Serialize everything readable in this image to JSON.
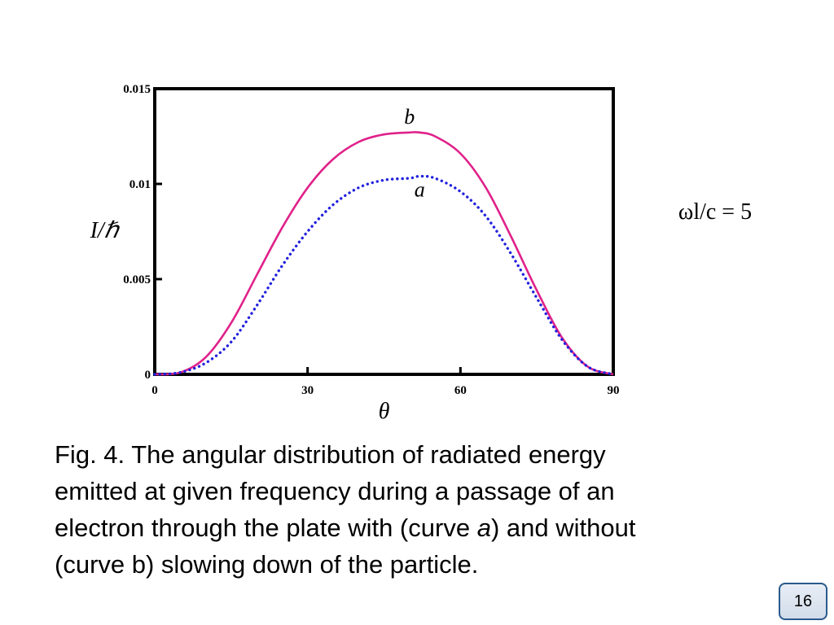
{
  "chart_data": {
    "type": "line",
    "xlabel": "θ",
    "ylabel": "I/ℏ",
    "xlim": [
      0,
      90
    ],
    "ylim": [
      0,
      0.015
    ],
    "x_ticks": [
      "0",
      "30",
      "60",
      "90"
    ],
    "y_ticks": [
      "0",
      "0.005",
      "0.01",
      "0.015"
    ],
    "annotation": "ωl/c = 5",
    "x": [
      0,
      5,
      10,
      15,
      20,
      25,
      30,
      35,
      40,
      45,
      50,
      52,
      55,
      60,
      65,
      70,
      75,
      80,
      85,
      90
    ],
    "series": [
      {
        "name": "b",
        "color": "#e0218a",
        "style": "solid",
        "values": [
          0,
          0.0001,
          0.0009,
          0.0027,
          0.0052,
          0.0077,
          0.0098,
          0.0113,
          0.0122,
          0.0126,
          0.0127,
          0.0127,
          0.0125,
          0.0116,
          0.0098,
          0.0072,
          0.0044,
          0.0019,
          0.0004,
          0
        ]
      },
      {
        "name": "a",
        "color": "#2222dd",
        "style": "dotted",
        "values": [
          0,
          0.0001,
          0.0006,
          0.0017,
          0.0036,
          0.0057,
          0.0075,
          0.0089,
          0.0098,
          0.0102,
          0.0103,
          0.0104,
          0.0103,
          0.0096,
          0.0083,
          0.0063,
          0.004,
          0.0018,
          0.0004,
          0
        ]
      }
    ]
  },
  "caption": {
    "line1": "Fig. 4. The angular distribution of radiated energy",
    "line2": "emitted at given frequency during a passage of an",
    "line3_pre": "electron through the plate with (curve ",
    "line3_italic": "a",
    "line3_post": ") and without",
    "line4": "(curve b) slowing down of the particle."
  },
  "page_number": "16"
}
